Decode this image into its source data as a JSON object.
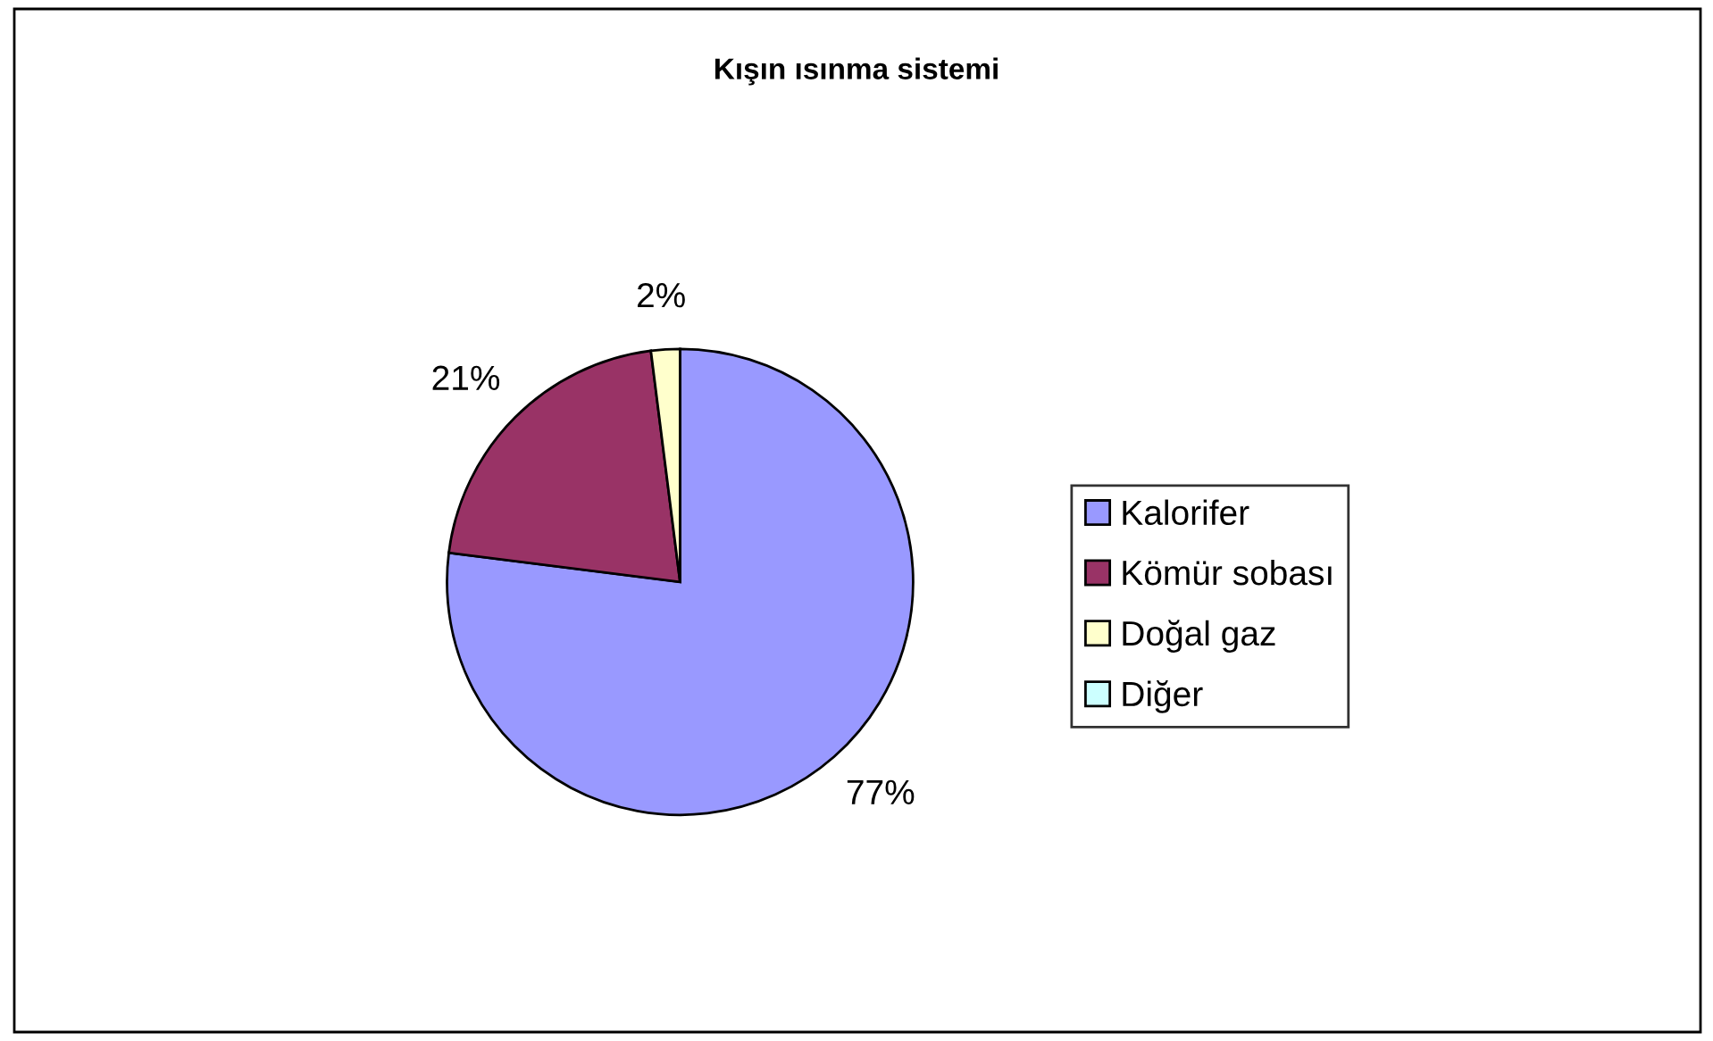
{
  "chart_data": {
    "type": "pie",
    "title": "Kışın ısınma sistemi",
    "categories": [
      "Kalorifer",
      "Kömür sobası",
      "Doğal gaz",
      "Diğer"
    ],
    "values": [
      77,
      21,
      2,
      0
    ],
    "colors": [
      "#9999ff",
      "#993366",
      "#ffffcc",
      "#ccffff"
    ],
    "value_labels": [
      "77%",
      "21%",
      "2%",
      null
    ],
    "legend": "right"
  }
}
